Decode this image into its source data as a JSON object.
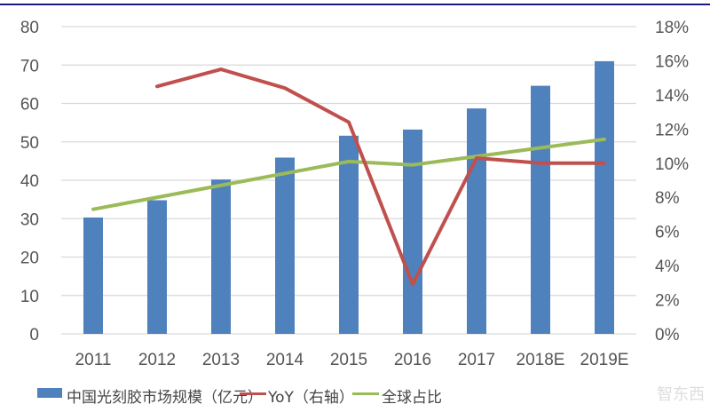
{
  "chart_data": {
    "type": "bar+line",
    "categories": [
      "2011",
      "2012",
      "2013",
      "2014",
      "2015",
      "2016",
      "2017",
      "2018E",
      "2019E"
    ],
    "series": [
      {
        "name": "中国光刻胶市场规模（亿元）",
        "type": "bar",
        "axis": "left",
        "color": "#4f81bd",
        "values": [
          30.3,
          34.8,
          40.2,
          45.9,
          51.6,
          53.2,
          58.7,
          64.6,
          71.0
        ]
      },
      {
        "name": "YoY（右轴）",
        "type": "line",
        "axis": "right",
        "color": "#c0504d",
        "values": [
          null,
          14.5,
          15.5,
          14.4,
          12.4,
          2.9,
          10.3,
          10.0,
          10.0
        ]
      },
      {
        "name": "全球占比",
        "type": "line",
        "axis": "right",
        "color": "#9bbb59",
        "values": [
          7.3,
          8.0,
          8.7,
          9.4,
          10.1,
          9.9,
          10.4,
          10.9,
          11.4
        ]
      }
    ],
    "y_left": {
      "range": [
        0,
        80
      ],
      "ticks": [
        "0",
        "10",
        "20",
        "30",
        "40",
        "50",
        "60",
        "70",
        "80"
      ]
    },
    "y_right": {
      "range": [
        0,
        18
      ],
      "unit": "%",
      "ticks": [
        "0%",
        "2%",
        "4%",
        "6%",
        "8%",
        "10%",
        "12%",
        "14%",
        "16%",
        "18%"
      ]
    },
    "grid": true,
    "legend": "bottom"
  },
  "watermark": "智东西"
}
